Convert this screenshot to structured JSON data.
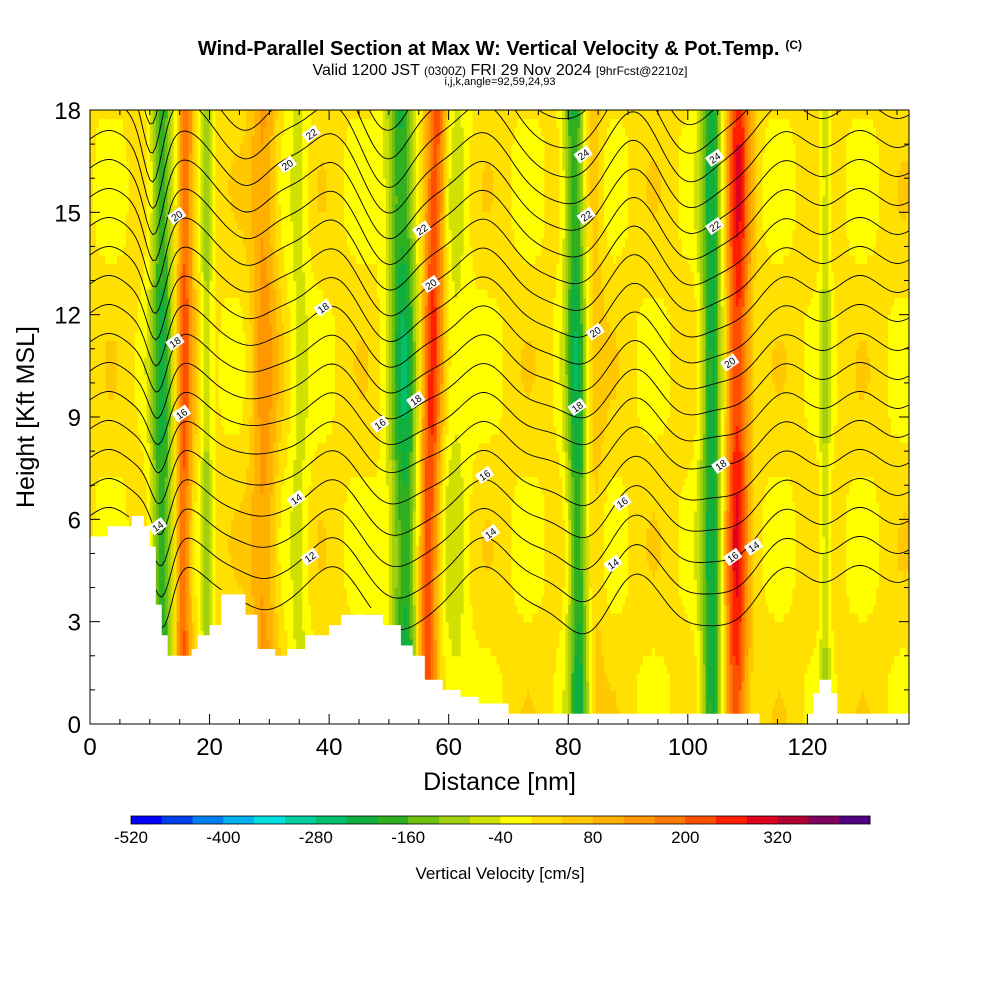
{
  "header": {
    "title": "Wind-Parallel Section at Max W: Vertical Velocity & Pot.Temp.",
    "copyright": "(C)",
    "valid_prefix": "Valid 1200 JST",
    "valid_utc": "(0300Z)",
    "valid_date": "FRI 29 Nov 2024",
    "forecast_info": "[9hrFcst@2210z]",
    "indices": "i,j,k,angle=92,59,24,93"
  },
  "chart_data": {
    "type": "heatmap",
    "title": "Wind-Parallel Section at Max W: Vertical Velocity & Pot.Temp.",
    "xlabel": "Distance [nm]",
    "ylabel": "Height [Kft MSL]",
    "xlim": [
      0,
      137
    ],
    "ylim": [
      0,
      18
    ],
    "xticks": [
      "0",
      "20",
      "40",
      "60",
      "80",
      "100",
      "120"
    ],
    "yticks": [
      "0",
      "3",
      "6",
      "9",
      "12",
      "15",
      "18"
    ],
    "shaded_field": "Vertical Velocity [cm/s]",
    "contour_field": "Potential temperature (labelled contours)",
    "colorbar": {
      "label": "Vertical Velocity [cm/s]",
      "tick_labels": [
        "-520",
        "-400",
        "-280",
        "-160",
        "-40",
        "80",
        "200",
        "320"
      ],
      "colors": [
        "#0000ff",
        "#0040f0",
        "#0080f0",
        "#00b0f0",
        "#00e0e0",
        "#00d0a0",
        "#00c070",
        "#10b040",
        "#30b020",
        "#70c010",
        "#a0d010",
        "#d0e000",
        "#ffff00",
        "#ffe000",
        "#ffc800",
        "#ffb000",
        "#ff9800",
        "#ff7800",
        "#ff5000",
        "#ff2000",
        "#e00020",
        "#b00030",
        "#800060",
        "#500080"
      ]
    },
    "terrain_profile": [
      [
        0,
        5.5
      ],
      [
        3,
        5.5
      ],
      [
        3,
        5.8
      ],
      [
        7,
        5.8
      ],
      [
        7,
        6.1
      ],
      [
        9,
        6.1
      ],
      [
        9,
        5.8
      ],
      [
        10,
        5.8
      ],
      [
        10,
        5.2
      ],
      [
        11,
        5.2
      ],
      [
        11,
        3.5
      ],
      [
        12,
        3.5
      ],
      [
        12,
        2.6
      ],
      [
        13,
        2.6
      ],
      [
        13,
        2
      ],
      [
        17,
        2
      ],
      [
        17,
        2.2
      ],
      [
        18,
        2.2
      ],
      [
        18,
        2.6
      ],
      [
        20,
        2.6
      ],
      [
        20,
        2.9
      ],
      [
        22,
        2.9
      ],
      [
        22,
        3.8
      ],
      [
        26,
        3.8
      ],
      [
        26,
        3.2
      ],
      [
        28,
        3.2
      ],
      [
        28,
        2.2
      ],
      [
        31,
        2.2
      ],
      [
        31,
        2
      ],
      [
        33,
        2
      ],
      [
        33,
        2.2
      ],
      [
        36,
        2.2
      ],
      [
        36,
        2.6
      ],
      [
        40,
        2.6
      ],
      [
        40,
        2.9
      ],
      [
        42,
        2.9
      ],
      [
        42,
        3.2
      ],
      [
        49,
        3.2
      ],
      [
        49,
        2.9
      ],
      [
        52,
        2.9
      ],
      [
        52,
        2.3
      ],
      [
        54,
        2.3
      ],
      [
        54,
        2
      ],
      [
        56,
        2
      ],
      [
        56,
        1.3
      ],
      [
        59,
        1.3
      ],
      [
        59,
        1
      ],
      [
        62,
        1
      ],
      [
        62,
        0.8
      ],
      [
        65,
        0.8
      ],
      [
        65,
        0.6
      ],
      [
        70,
        0.6
      ],
      [
        70,
        0.3
      ],
      [
        112,
        0.3
      ],
      [
        112,
        0
      ],
      [
        120,
        0
      ],
      [
        120,
        0.3
      ],
      [
        121,
        0.3
      ],
      [
        121,
        0.9
      ],
      [
        122,
        0.9
      ],
      [
        122,
        1.3
      ],
      [
        124,
        1.3
      ],
      [
        124,
        0.9
      ],
      [
        125,
        0.9
      ],
      [
        125,
        0.3
      ],
      [
        137,
        0.3
      ]
    ],
    "velocity_bands": [
      {
        "x_bottom": 12,
        "x_top": 12,
        "half_width": 1.8,
        "w": -210
      },
      {
        "x_bottom": 15.5,
        "x_top": 16,
        "half_width": 1.3,
        "w": 200
      },
      {
        "x_bottom": 19.5,
        "x_top": 19.5,
        "half_width": 0.9,
        "w": -100
      },
      {
        "x_bottom": 29,
        "x_top": 29,
        "half_width": 2.2,
        "w": 120
      },
      {
        "x_bottom": 35,
        "x_top": 35,
        "half_width": 1.8,
        "w": -60
      },
      {
        "x_bottom": 53,
        "x_top": 52,
        "half_width": 2.4,
        "w": -230
      },
      {
        "x_bottom": 56,
        "x_top": 58,
        "half_width": 1.8,
        "w": 240
      },
      {
        "x_bottom": 61,
        "x_top": 61,
        "half_width": 2.5,
        "w": -60
      },
      {
        "x_bottom": 82,
        "x_top": 81,
        "half_width": 1.8,
        "w": -230
      },
      {
        "x_bottom": 84,
        "x_top": 84,
        "half_width": 1.8,
        "w": 60
      },
      {
        "x_bottom": 104,
        "x_top": 104,
        "half_width": 1.8,
        "w": -230
      },
      {
        "x_bottom": 108,
        "x_top": 108.5,
        "half_width": 2.0,
        "w": 250
      },
      {
        "x_bottom": 123,
        "x_top": 123,
        "half_width": 0.9,
        "w": -90
      }
    ],
    "contour_labels": [
      {
        "text": "22",
        "x": 37,
        "y": 17.3
      },
      {
        "text": "20",
        "x": 33,
        "y": 16.4
      },
      {
        "text": "20",
        "x": 14.5,
        "y": 14.9
      },
      {
        "text": "18",
        "x": 14.2,
        "y": 11.2
      },
      {
        "text": "16",
        "x": 15.3,
        "y": 9.1
      },
      {
        "text": "14",
        "x": 11.3,
        "y": 5.8
      },
      {
        "text": "14",
        "x": 34.5,
        "y": 6.6
      },
      {
        "text": "12",
        "x": 36.8,
        "y": 4.9
      },
      {
        "text": "18",
        "x": 39,
        "y": 12.2
      },
      {
        "text": "16",
        "x": 48.5,
        "y": 8.8
      },
      {
        "text": "18",
        "x": 54.5,
        "y": 9.5
      },
      {
        "text": "22",
        "x": 55.5,
        "y": 14.5
      },
      {
        "text": "20",
        "x": 57,
        "y": 12.9
      },
      {
        "text": "16",
        "x": 66,
        "y": 7.3
      },
      {
        "text": "14",
        "x": 67,
        "y": 5.6
      },
      {
        "text": "24",
        "x": 82.5,
        "y": 16.7
      },
      {
        "text": "22",
        "x": 83,
        "y": 14.9
      },
      {
        "text": "20",
        "x": 84.5,
        "y": 11.5
      },
      {
        "text": "18",
        "x": 81.5,
        "y": 9.3
      },
      {
        "text": "16",
        "x": 89,
        "y": 6.5
      },
      {
        "text": "14",
        "x": 87.5,
        "y": 4.7
      },
      {
        "text": "24",
        "x": 104.5,
        "y": 16.6
      },
      {
        "text": "22",
        "x": 104.5,
        "y": 14.6
      },
      {
        "text": "20",
        "x": 107,
        "y": 10.6
      },
      {
        "text": "18",
        "x": 105.5,
        "y": 7.6
      },
      {
        "text": "16",
        "x": 107.5,
        "y": 4.9
      },
      {
        "text": "14",
        "x": 111,
        "y": 5.2
      }
    ]
  }
}
